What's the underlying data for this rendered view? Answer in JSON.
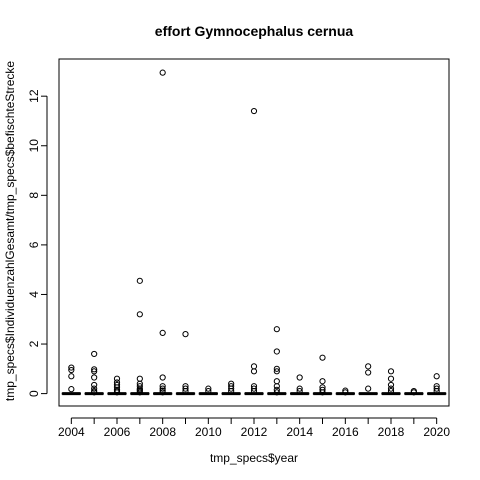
{
  "chart_data": {
    "type": "boxplot",
    "title": "effort Gymnocephalus cernua",
    "xlabel": "tmp_specs$year",
    "ylabel": "tmp_specs$IndividuenzahlGesamt/tmp_specs$befischteStrecke",
    "ylim": [
      -0.5,
      13.5
    ],
    "yticks": [
      0,
      2,
      4,
      6,
      8,
      10,
      12
    ],
    "categories": [
      2004,
      2005,
      2006,
      2007,
      2008,
      2009,
      2010,
      2011,
      2012,
      2013,
      2014,
      2015,
      2016,
      2017,
      2018,
      2019,
      2020
    ],
    "xtick_labels": [
      "2004",
      "2006",
      "2008",
      "2010",
      "2012",
      "2014",
      "2016",
      "2018",
      "2020"
    ],
    "box_values": {
      "q1": 0,
      "median": 0,
      "q3": 0.02,
      "whisker_low": 0,
      "whisker_high": 0.05
    },
    "outliers": [
      [
        0.18,
        0.7,
        0.95,
        1.05
      ],
      [
        0.05,
        0.1,
        0.2,
        0.35,
        0.65,
        0.9,
        0.98,
        1.6
      ],
      [
        0.05,
        0.1,
        0.15,
        0.25,
        0.35,
        0.45,
        0.6
      ],
      [
        0.05,
        0.1,
        0.15,
        0.2,
        0.3,
        0.4,
        0.6,
        3.2,
        4.55
      ],
      [
        0.05,
        0.12,
        0.2,
        0.3,
        0.65,
        2.45,
        12.95
      ],
      [
        0.1,
        0.2,
        0.3,
        2.4
      ],
      [
        0.1,
        0.2
      ],
      [
        0.1,
        0.2,
        0.3,
        0.4
      ],
      [
        0.1,
        0.2,
        0.3,
        0.9,
        1.1,
        11.4
      ],
      [
        0.05,
        0.15,
        0.3,
        0.5,
        0.9,
        1.0,
        1.7,
        2.6
      ],
      [
        0.1,
        0.2,
        0.65
      ],
      [
        0.05,
        0.15,
        0.25,
        0.5,
        1.45
      ],
      [
        0.05,
        0.12
      ],
      [
        0.2,
        0.85,
        1.1
      ],
      [
        0.1,
        0.2,
        0.35,
        0.6,
        0.9
      ],
      [
        0.05,
        0.1
      ],
      [
        0.1,
        0.2,
        0.3,
        0.7
      ]
    ],
    "grid": false,
    "legend": "none"
  }
}
